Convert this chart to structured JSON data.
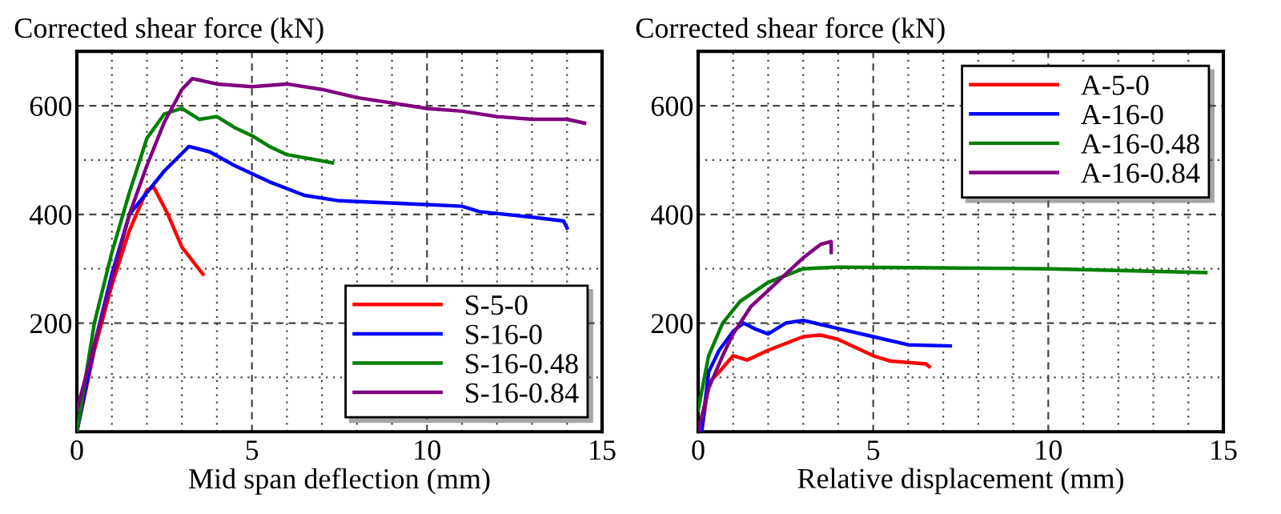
{
  "chart_data": [
    {
      "type": "line",
      "xlabel": "Mid span deflection (mm)",
      "ylabel": "Corrected shear force (kN)",
      "xlim": [
        0,
        15
      ],
      "ylim": [
        0,
        700
      ],
      "xticks": [
        0,
        {
          "value": 1,
          "label": null
        },
        {
          "value": 2,
          "label": null
        },
        {
          "value": 3,
          "label": null
        },
        {
          "value": 4,
          "label": null
        },
        5,
        {
          "value": 6,
          "label": null
        },
        {
          "value": 7,
          "label": null
        },
        {
          "value": 8,
          "label": null
        },
        {
          "value": 9,
          "label": null
        },
        10,
        {
          "value": 11,
          "label": null
        },
        {
          "value": 12,
          "label": null
        },
        {
          "value": 13,
          "label": null
        },
        {
          "value": 14,
          "label": null
        },
        15
      ],
      "yticks": [
        {
          "value": 100,
          "label": null
        },
        200,
        {
          "value": 300,
          "label": null
        },
        400,
        {
          "value": 500,
          "label": null
        },
        600
      ],
      "grid": true,
      "legend": "bottom right",
      "line_style": "solid",
      "series": [
        {
          "name": "S-5-0",
          "color": "#ff0000",
          "x": [
            0,
            0.5,
            1,
            1.5,
            2,
            2.2,
            2.6,
            3,
            3.6
          ],
          "values": [
            0,
            150,
            270,
            370,
            445,
            450,
            400,
            340,
            290
          ]
        },
        {
          "name": "S-16-0",
          "color": "#0000ff",
          "x": [
            0,
            0.5,
            1,
            1.5,
            2,
            2.5,
            3.2,
            3.8,
            4.5,
            5.5,
            6.5,
            7.5,
            10,
            11,
            11.5,
            13,
            13.9,
            14
          ],
          "values": [
            0,
            160,
            290,
            400,
            440,
            480,
            525,
            515,
            490,
            460,
            435,
            425,
            418,
            415,
            405,
            395,
            388,
            375
          ]
        },
        {
          "name": "S-16-0.48",
          "color": "#008000",
          "x": [
            0,
            0.5,
            1,
            1.5,
            2,
            2.5,
            3,
            3.5,
            4,
            4.5,
            5,
            5.5,
            6,
            7.3
          ],
          "values": [
            0,
            200,
            330,
            440,
            540,
            585,
            595,
            575,
            580,
            560,
            545,
            525,
            510,
            495
          ]
        },
        {
          "name": "S-16-0.84",
          "color": "#800080",
          "x": [
            0,
            0.5,
            1,
            1.5,
            2,
            2.5,
            3,
            3.3,
            4,
            5,
            6,
            7,
            8,
            9,
            10,
            11,
            12,
            13,
            14,
            14.5
          ],
          "values": [
            40,
            160,
            280,
            400,
            490,
            570,
            630,
            650,
            640,
            635,
            640,
            630,
            615,
            605,
            595,
            590,
            580,
            575,
            575,
            568
          ]
        }
      ]
    },
    {
      "type": "line",
      "xlabel": "Relative displacement (mm)",
      "ylabel": "Corrected shear force (kN)",
      "xlim": [
        0,
        15
      ],
      "ylim": [
        0,
        700
      ],
      "xticks": [
        0,
        {
          "value": 1,
          "label": null
        },
        {
          "value": 2,
          "label": null
        },
        {
          "value": 3,
          "label": null
        },
        {
          "value": 4,
          "label": null
        },
        5,
        {
          "value": 6,
          "label": null
        },
        {
          "value": 7,
          "label": null
        },
        {
          "value": 8,
          "label": null
        },
        {
          "value": 9,
          "label": null
        },
        10,
        {
          "value": 11,
          "label": null
        },
        {
          "value": 12,
          "label": null
        },
        {
          "value": 13,
          "label": null
        },
        {
          "value": 14,
          "label": null
        },
        15
      ],
      "yticks": [
        {
          "value": 100,
          "label": null
        },
        200,
        {
          "value": 300,
          "label": null
        },
        400,
        {
          "value": 500,
          "label": null
        },
        600
      ],
      "grid": true,
      "legend": "top right",
      "line_style": "solid",
      "series": [
        {
          "name": "A-5-0",
          "color": "#ff0000",
          "x": [
            0.1,
            0.3,
            0.6,
            1,
            1.4,
            2,
            3,
            3.5,
            4,
            5,
            5.5,
            6.5,
            6.6
          ],
          "values": [
            0,
            90,
            110,
            140,
            132,
            150,
            175,
            178,
            170,
            140,
            130,
            125,
            120
          ]
        },
        {
          "name": "A-16-0",
          "color": "#0000ff",
          "x": [
            0.1,
            0.3,
            0.6,
            1,
            1.3,
            1.6,
            2,
            2.5,
            3,
            4,
            5,
            6,
            7.2
          ],
          "values": [
            0,
            110,
            150,
            185,
            200,
            190,
            180,
            200,
            205,
            190,
            175,
            160,
            158
          ]
        },
        {
          "name": "A-16-0.48",
          "color": "#008000",
          "x": [
            0,
            0.3,
            0.7,
            1.2,
            2,
            3,
            4,
            6,
            10,
            14.5
          ],
          "values": [
            40,
            140,
            200,
            240,
            275,
            300,
            303,
            302,
            300,
            293
          ]
        },
        {
          "name": "A-16-0.84",
          "color": "#800080",
          "x": [
            0,
            0.3,
            0.7,
            1,
            1.5,
            2,
            2.5,
            3,
            3.5,
            3.8,
            3.8
          ],
          "values": [
            0,
            80,
            140,
            180,
            230,
            260,
            290,
            320,
            345,
            350,
            330
          ]
        }
      ]
    }
  ]
}
